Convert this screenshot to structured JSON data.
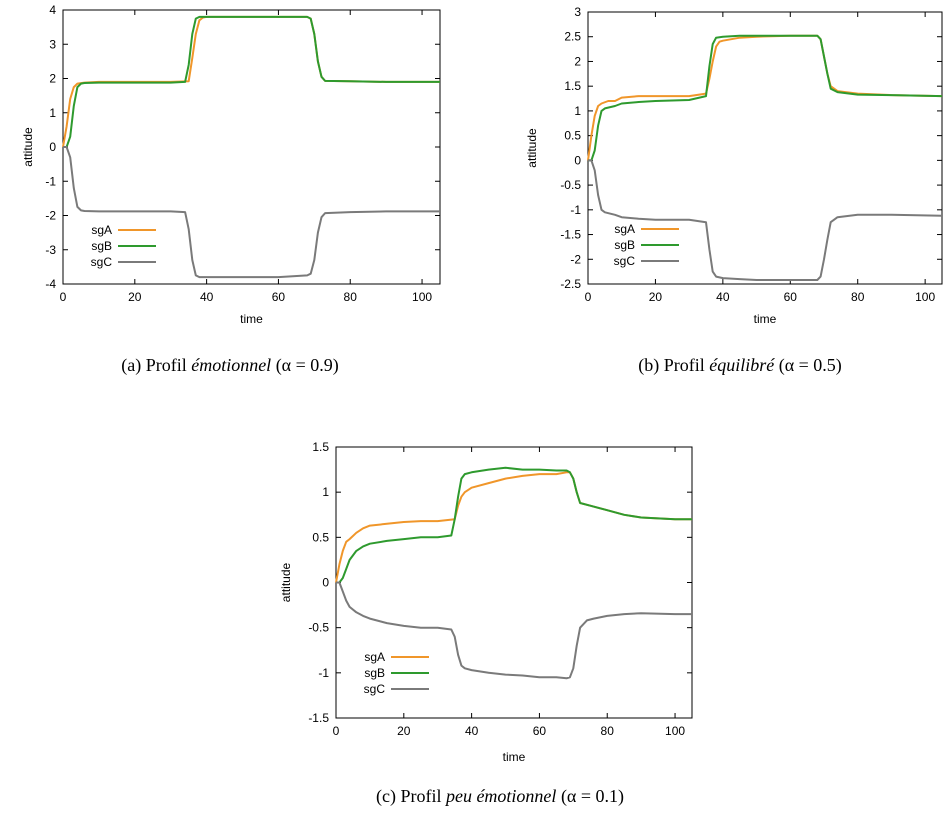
{
  "colors": {
    "sgA": "#f0962a",
    "sgB": "#2e9a2e",
    "sgC": "#7a7a7a",
    "axis": "#000000"
  },
  "captions": [
    {
      "prefix": "(a) Profil ",
      "emph": "émotionnel",
      "suffix": " (α = 0.9)"
    },
    {
      "prefix": "(b) Profil ",
      "emph": "équilibré",
      "suffix": " (α = 0.5)"
    },
    {
      "prefix": "(c) Profil ",
      "emph": "peu émotionnel",
      "suffix": " (α = 0.1)"
    }
  ],
  "chart_data": [
    {
      "type": "line",
      "xlabel": "time",
      "ylabel": "attitude",
      "xlim": [
        0,
        105
      ],
      "ylim": [
        -4,
        4
      ],
      "xticks": [
        0,
        20,
        40,
        60,
        80,
        100
      ],
      "yticks": [
        -4,
        -3,
        -2,
        -1,
        0,
        1,
        2,
        3,
        4
      ],
      "legend_position": "bottom-left",
      "grid": false,
      "series": [
        {
          "name": "sgA",
          "color": "#f0962a",
          "x": [
            0,
            1,
            2,
            3,
            4,
            6,
            10,
            20,
            30,
            35,
            36,
            37,
            38,
            39,
            40,
            50,
            60,
            68,
            69,
            70,
            71,
            72,
            73,
            80,
            90,
            105
          ],
          "y": [
            0,
            0.6,
            1.4,
            1.75,
            1.85,
            1.88,
            1.9,
            1.9,
            1.9,
            1.92,
            2.6,
            3.3,
            3.7,
            3.78,
            3.8,
            3.8,
            3.8,
            3.8,
            3.75,
            3.3,
            2.5,
            2.05,
            1.93,
            1.92,
            1.9,
            1.9
          ]
        },
        {
          "name": "sgB",
          "color": "#2e9a2e",
          "x": [
            0,
            1,
            2,
            3,
            4,
            5,
            6,
            10,
            20,
            30,
            34,
            35,
            36,
            37,
            38,
            40,
            50,
            60,
            68,
            69,
            70,
            71,
            72,
            73,
            80,
            90,
            105
          ],
          "y": [
            0,
            0,
            0.3,
            1.2,
            1.75,
            1.85,
            1.87,
            1.88,
            1.88,
            1.88,
            1.9,
            2.4,
            3.3,
            3.75,
            3.8,
            3.8,
            3.8,
            3.8,
            3.8,
            3.75,
            3.3,
            2.5,
            2.05,
            1.93,
            1.92,
            1.9,
            1.9
          ]
        },
        {
          "name": "sgC",
          "color": "#7a7a7a",
          "x": [
            0,
            1,
            2,
            3,
            4,
            5,
            6,
            10,
            20,
            30,
            34,
            35,
            36,
            37,
            38,
            40,
            50,
            60,
            68,
            69,
            70,
            71,
            72,
            73,
            80,
            90,
            105
          ],
          "y": [
            0,
            0,
            -0.3,
            -1.2,
            -1.75,
            -1.85,
            -1.87,
            -1.88,
            -1.88,
            -1.88,
            -1.9,
            -2.4,
            -3.3,
            -3.75,
            -3.8,
            -3.8,
            -3.8,
            -3.8,
            -3.75,
            -3.7,
            -3.3,
            -2.5,
            -2.05,
            -1.93,
            -1.9,
            -1.88,
            -1.88
          ]
        }
      ]
    },
    {
      "type": "line",
      "xlabel": "time",
      "ylabel": "attitude",
      "xlim": [
        0,
        105
      ],
      "ylim": [
        -2.5,
        3
      ],
      "xticks": [
        0,
        20,
        40,
        60,
        80,
        100
      ],
      "yticks": [
        -2.5,
        -2,
        -1.5,
        -1,
        -0.5,
        0,
        0.5,
        1,
        1.5,
        2,
        2.5,
        3
      ],
      "legend_position": "bottom-left",
      "grid": false,
      "series": [
        {
          "name": "sgA",
          "color": "#f0962a",
          "x": [
            0,
            1,
            2,
            3,
            4,
            6,
            8,
            10,
            15,
            20,
            30,
            35,
            36,
            37,
            38,
            39,
            40,
            45,
            50,
            60,
            68,
            69,
            70,
            71,
            72,
            74,
            80,
            90,
            105
          ],
          "y": [
            0,
            0.5,
            0.9,
            1.1,
            1.15,
            1.2,
            1.2,
            1.27,
            1.3,
            1.3,
            1.3,
            1.35,
            1.65,
            2.0,
            2.3,
            2.4,
            2.42,
            2.48,
            2.5,
            2.52,
            2.52,
            2.45,
            2.1,
            1.75,
            1.5,
            1.4,
            1.35,
            1.32,
            1.3
          ]
        },
        {
          "name": "sgB",
          "color": "#2e9a2e",
          "x": [
            0,
            1,
            2,
            3,
            4,
            5,
            8,
            10,
            15,
            20,
            30,
            35,
            36,
            37,
            38,
            40,
            45,
            50,
            60,
            68,
            69,
            70,
            71,
            72,
            74,
            80,
            90,
            105
          ],
          "y": [
            0,
            0,
            0.2,
            0.7,
            1.0,
            1.05,
            1.1,
            1.15,
            1.18,
            1.2,
            1.22,
            1.3,
            1.9,
            2.35,
            2.48,
            2.5,
            2.52,
            2.52,
            2.52,
            2.52,
            2.45,
            2.1,
            1.75,
            1.45,
            1.38,
            1.33,
            1.32,
            1.3
          ]
        },
        {
          "name": "sgC",
          "color": "#7a7a7a",
          "x": [
            0,
            1,
            2,
            3,
            4,
            5,
            8,
            10,
            15,
            20,
            30,
            35,
            36,
            37,
            38,
            40,
            45,
            50,
            60,
            68,
            69,
            70,
            71,
            72,
            74,
            80,
            90,
            105
          ],
          "y": [
            0,
            0,
            -0.2,
            -0.7,
            -1.0,
            -1.05,
            -1.1,
            -1.15,
            -1.18,
            -1.2,
            -1.2,
            -1.25,
            -1.8,
            -2.25,
            -2.35,
            -2.38,
            -2.4,
            -2.42,
            -2.42,
            -2.42,
            -2.35,
            -2.0,
            -1.6,
            -1.25,
            -1.15,
            -1.1,
            -1.1,
            -1.12
          ]
        }
      ]
    },
    {
      "type": "line",
      "xlabel": "time",
      "ylabel": "attitude",
      "xlim": [
        0,
        105
      ],
      "ylim": [
        -1.5,
        1.5
      ],
      "xticks": [
        0,
        20,
        40,
        60,
        80,
        100
      ],
      "yticks": [
        -1.5,
        -1,
        -0.5,
        0,
        0.5,
        1,
        1.5
      ],
      "legend_position": "bottom-left",
      "grid": false,
      "series": [
        {
          "name": "sgA",
          "color": "#f0962a",
          "x": [
            0,
            1,
            2,
            3,
            4,
            6,
            8,
            10,
            15,
            20,
            25,
            30,
            35,
            36,
            37,
            38,
            40,
            45,
            50,
            55,
            60,
            65,
            68,
            69,
            70,
            71,
            72,
            75,
            80,
            85,
            90,
            100,
            105
          ],
          "y": [
            0,
            0.2,
            0.35,
            0.45,
            0.48,
            0.55,
            0.6,
            0.63,
            0.65,
            0.67,
            0.68,
            0.68,
            0.7,
            0.85,
            0.95,
            1.0,
            1.05,
            1.1,
            1.15,
            1.18,
            1.2,
            1.2,
            1.22,
            1.22,
            1.15,
            1.0,
            0.88,
            0.85,
            0.8,
            0.75,
            0.72,
            0.7,
            0.7
          ]
        },
        {
          "name": "sgB",
          "color": "#2e9a2e",
          "x": [
            0,
            1,
            2,
            3,
            4,
            6,
            8,
            10,
            15,
            20,
            25,
            30,
            34,
            35,
            36,
            37,
            38,
            40,
            45,
            50,
            55,
            60,
            65,
            68,
            69,
            70,
            71,
            72,
            75,
            80,
            85,
            90,
            100,
            105
          ],
          "y": [
            0,
            0,
            0.05,
            0.15,
            0.25,
            0.35,
            0.4,
            0.43,
            0.46,
            0.48,
            0.5,
            0.5,
            0.52,
            0.7,
            0.95,
            1.15,
            1.2,
            1.22,
            1.25,
            1.27,
            1.25,
            1.25,
            1.24,
            1.24,
            1.22,
            1.15,
            1.0,
            0.88,
            0.85,
            0.8,
            0.75,
            0.72,
            0.7,
            0.7
          ]
        },
        {
          "name": "sgC",
          "color": "#7a7a7a",
          "x": [
            0,
            1,
            2,
            3,
            4,
            6,
            8,
            10,
            15,
            20,
            25,
            30,
            34,
            35,
            36,
            37,
            38,
            40,
            45,
            50,
            55,
            60,
            65,
            68,
            69,
            70,
            71,
            72,
            74,
            76,
            80,
            85,
            90,
            100,
            105
          ],
          "y": [
            0,
            0,
            -0.1,
            -0.2,
            -0.27,
            -0.33,
            -0.37,
            -0.4,
            -0.45,
            -0.48,
            -0.5,
            -0.5,
            -0.52,
            -0.6,
            -0.8,
            -0.92,
            -0.95,
            -0.97,
            -1.0,
            -1.02,
            -1.03,
            -1.05,
            -1.05,
            -1.06,
            -1.05,
            -0.95,
            -0.7,
            -0.5,
            -0.42,
            -0.4,
            -0.37,
            -0.35,
            -0.34,
            -0.35,
            -0.35
          ]
        }
      ]
    }
  ]
}
